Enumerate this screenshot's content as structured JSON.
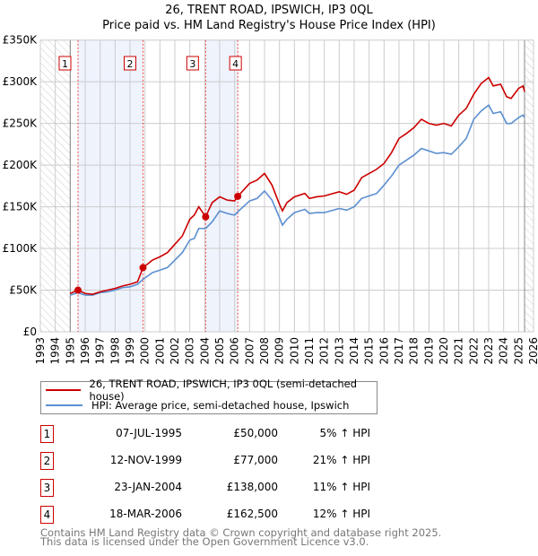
{
  "title": "26, TRENT ROAD, IPSWICH, IP3 0QL",
  "subtitle": "Price paid vs. HM Land Registry's House Price Index (HPI)",
  "chart_data": {
    "type": "line",
    "title": "26, TRENT ROAD, IPSWICH, IP3 0QL - Price paid vs. HM Land Registry's House Price Index (HPI)",
    "xlim": [
      1993,
      2026
    ],
    "ylim": [
      0,
      350000
    ],
    "x_ticks": [
      "1993",
      "1994",
      "1995",
      "1996",
      "1997",
      "1998",
      "1999",
      "2000",
      "2001",
      "2002",
      "2003",
      "2004",
      "2005",
      "2006",
      "2007",
      "2008",
      "2009",
      "2010",
      "2011",
      "2012",
      "2013",
      "2014",
      "2015",
      "2016",
      "2017",
      "2018",
      "2019",
      "2020",
      "2021",
      "2022",
      "2023",
      "2024",
      "2025",
      "2026"
    ],
    "y_ticks": [
      {
        "v": 0,
        "label": "£0"
      },
      {
        "v": 50000,
        "label": "£50K"
      },
      {
        "v": 100000,
        "label": "£100K"
      },
      {
        "v": 150000,
        "label": "£150K"
      },
      {
        "v": 200000,
        "label": "£200K"
      },
      {
        "v": 250000,
        "label": "£250K"
      },
      {
        "v": 300000,
        "label": "£300K"
      },
      {
        "v": 350000,
        "label": "£350K"
      }
    ],
    "grid": true,
    "hatched_ranges": [
      [
        1993,
        1995
      ],
      [
        2025.4,
        2026
      ]
    ],
    "shaded_ranges": [
      [
        1995.52,
        1999.87
      ],
      [
        2004.06,
        2006.21
      ]
    ],
    "series": [
      {
        "name": "26, TRENT ROAD, IPSWICH, IP3 0QL (semi-detached house)",
        "color": "#cc0000",
        "x": [
          1995,
          1995.5,
          1996,
          1996.5,
          1997,
          1997.5,
          1998,
          1998.5,
          1999,
          1999.5,
          1999.87,
          2000.5,
          2001,
          2001.5,
          2002,
          2002.5,
          2003,
          2003.3,
          2003.6,
          2004.06,
          2004.5,
          2005,
          2005.5,
          2006,
          2006.21,
          2007,
          2007.5,
          2008,
          2008.5,
          2009,
          2009.2,
          2009.5,
          2010,
          2010.7,
          2011,
          2011.5,
          2012,
          2013,
          2013.5,
          2014,
          2014.5,
          2015,
          2015.5,
          2016,
          2016.5,
          2017,
          2017.5,
          2018,
          2018.5,
          2019,
          2019.5,
          2020,
          2020.5,
          2021,
          2021.5,
          2022,
          2022.5,
          2023,
          2023.3,
          2023.8,
          2024.2,
          2024.5,
          2025,
          2025.3,
          2025.4
        ],
        "y": [
          46000,
          50000,
          46000,
          45000,
          48000,
          50000,
          52000,
          55000,
          57000,
          60000,
          77000,
          86000,
          90000,
          95000,
          105000,
          115000,
          135000,
          140000,
          150000,
          138000,
          155000,
          162000,
          158000,
          157000,
          162500,
          178000,
          182000,
          190000,
          176000,
          153000,
          145000,
          155000,
          162000,
          166000,
          160000,
          162000,
          163000,
          168000,
          165000,
          170000,
          185000,
          190000,
          195000,
          202000,
          215000,
          232000,
          238000,
          245000,
          255000,
          250000,
          248000,
          250000,
          247000,
          260000,
          268000,
          285000,
          298000,
          305000,
          295000,
          297000,
          282000,
          280000,
          292000,
          295000,
          288000
        ]
      },
      {
        "name": "HPI: Average price, semi-detached house, Ipswich",
        "color": "#5b8fd0",
        "x": [
          1995,
          1995.5,
          1996,
          1996.5,
          1997,
          1997.5,
          1998,
          1998.5,
          1999,
          1999.5,
          1999.87,
          2000.5,
          2001,
          2001.5,
          2002,
          2002.5,
          2003,
          2003.3,
          2003.6,
          2004.06,
          2004.5,
          2005,
          2005.5,
          2006,
          2006.21,
          2007,
          2007.5,
          2008,
          2008.5,
          2009,
          2009.2,
          2009.5,
          2010,
          2010.7,
          2011,
          2011.5,
          2012,
          2013,
          2013.5,
          2014,
          2014.5,
          2015,
          2015.5,
          2016,
          2016.5,
          2017,
          2017.5,
          2018,
          2018.5,
          2019,
          2019.5,
          2020,
          2020.5,
          2021,
          2021.5,
          2022,
          2022.5,
          2023,
          2023.3,
          2023.8,
          2024.2,
          2024.5,
          2025,
          2025.3,
          2025.4
        ],
        "y": [
          44000,
          47000,
          44000,
          44000,
          47000,
          48000,
          50000,
          53000,
          54000,
          57000,
          63000,
          71000,
          74000,
          77000,
          86000,
          95000,
          110000,
          112000,
          124000,
          124000,
          132000,
          145000,
          142000,
          140000,
          144000,
          157000,
          160000,
          169000,
          158000,
          137000,
          128000,
          135000,
          143000,
          147000,
          142000,
          143000,
          143000,
          148000,
          146000,
          150000,
          160000,
          163000,
          166000,
          176000,
          187000,
          200000,
          206000,
          212000,
          220000,
          217000,
          214000,
          215000,
          213000,
          222000,
          232000,
          255000,
          265000,
          272000,
          262000,
          264000,
          250000,
          250000,
          257000,
          260000,
          257000
        ]
      }
    ],
    "sales": [
      {
        "n": "1",
        "x": 1995.52,
        "y": 50000
      },
      {
        "n": "2",
        "x": 1999.87,
        "y": 77000
      },
      {
        "n": "3",
        "x": 2004.06,
        "y": 138000
      },
      {
        "n": "4",
        "x": 2006.21,
        "y": 162500
      }
    ]
  },
  "legend": {
    "property": "26, TRENT ROAD, IPSWICH, IP3 0QL (semi-detached house)",
    "hpi": "HPI: Average price, semi-detached house, Ipswich",
    "property_color": "#cc0000",
    "hpi_color": "#5b8fd0"
  },
  "transactions": [
    {
      "n": "1",
      "date": "07-JUL-1995",
      "price": "£50,000",
      "hpi": "5% ↑ HPI"
    },
    {
      "n": "2",
      "date": "12-NOV-1999",
      "price": "£77,000",
      "hpi": "21% ↑ HPI"
    },
    {
      "n": "3",
      "date": "23-JAN-2004",
      "price": "£138,000",
      "hpi": "11% ↑ HPI"
    },
    {
      "n": "4",
      "date": "18-MAR-2006",
      "price": "£162,500",
      "hpi": "12% ↑ HPI"
    }
  ],
  "footer": {
    "line1": "Contains HM Land Registry data © Crown copyright and database right 2025.",
    "line2": "This data is licensed under the Open Government Licence v3.0."
  }
}
